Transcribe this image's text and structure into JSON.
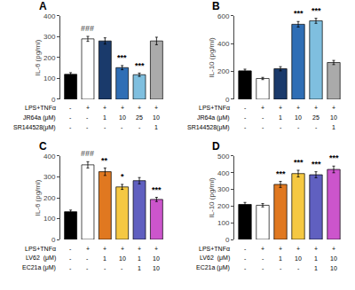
{
  "chart_data": [
    {
      "type": "bar",
      "title": "A",
      "ylabel": "IL-6 (pg/ml)",
      "categories": [
        null,
        null,
        null,
        null,
        null,
        null
      ],
      "values": [
        120,
        290,
        280,
        152,
        118,
        280
      ],
      "errors": [
        8,
        12,
        15,
        10,
        8,
        18
      ],
      "colors": [
        "#000000",
        "#ffffff",
        "#1a3a6b",
        "#2f6eb5",
        "#7fbfdf",
        "#aaaaaa"
      ],
      "ylim": [
        0,
        400
      ],
      "yticks": [
        0,
        100,
        200,
        300,
        400
      ],
      "grid": false,
      "tick_labels": "y",
      "annotations": [
        {
          "index": 1,
          "text": "###",
          "color": "#666666"
        },
        {
          "index": 3,
          "text": "***",
          "color": "#000000"
        },
        {
          "index": 4,
          "text": "***",
          "color": "#000000"
        }
      ],
      "x_table": {
        "row_labels": [
          "LPS+TNFα",
          "JR64a (μM)",
          "SR144528(μM)"
        ],
        "cells": [
          [
            "-",
            "+",
            "+",
            "+",
            "+",
            "+"
          ],
          [
            "-",
            "-",
            "1",
            "10",
            "25",
            "10"
          ],
          [
            "-",
            "-",
            "-",
            "-",
            "-",
            "1"
          ]
        ]
      }
    },
    {
      "type": "bar",
      "title": "B",
      "ylabel": "IL-10 (pg/ml)",
      "categories": [
        null,
        null,
        null,
        null,
        null,
        null
      ],
      "values": [
        205,
        150,
        220,
        540,
        565,
        265
      ],
      "errors": [
        12,
        8,
        15,
        20,
        18,
        15
      ],
      "colors": [
        "#000000",
        "#ffffff",
        "#1a3a6b",
        "#2f6eb5",
        "#7fbfdf",
        "#aaaaaa"
      ],
      "ylim": [
        0,
        600
      ],
      "yticks": [
        0,
        200,
        400,
        600
      ],
      "grid": false,
      "tick_labels": "y",
      "annotations": [
        {
          "index": 3,
          "text": "***",
          "color": "#000000"
        },
        {
          "index": 4,
          "text": "***",
          "color": "#000000"
        }
      ],
      "x_table": {
        "row_labels": [
          "LPS+TNFα",
          "JR64a (μM)",
          "SR144528(μM)"
        ],
        "cells": [
          [
            "-",
            "+",
            "+",
            "+",
            "+",
            "+"
          ],
          [
            "-",
            "-",
            "1",
            "10",
            "25",
            "10"
          ],
          [
            "-",
            "-",
            "-",
            "-",
            "-",
            "1"
          ]
        ]
      }
    },
    {
      "type": "bar",
      "title": "C",
      "ylabel": "IL-6 (pg/ml)",
      "categories": [
        null,
        null,
        null,
        null,
        null,
        null
      ],
      "values": [
        133,
        358,
        325,
        252,
        282,
        192
      ],
      "errors": [
        8,
        15,
        18,
        12,
        15,
        10
      ],
      "colors": [
        "#000000",
        "#ffffff",
        "#e07820",
        "#f5c842",
        "#6060c0",
        "#cc55cc"
      ],
      "ylim": [
        0,
        400
      ],
      "yticks": [
        0,
        100,
        200,
        300,
        400
      ],
      "grid": false,
      "tick_labels": "y",
      "annotations": [
        {
          "index": 1,
          "text": "###",
          "color": "#666666"
        },
        {
          "index": 2,
          "text": "**",
          "color": "#000000"
        },
        {
          "index": 3,
          "text": "*",
          "color": "#000000"
        },
        {
          "index": 5,
          "text": "***",
          "color": "#000000"
        }
      ],
      "x_table": {
        "row_labels": [
          "LPS+TNFα",
          "LV62  (μM)",
          "EC21a (μM)"
        ],
        "cells": [
          [
            "-",
            "+",
            "+",
            "+",
            "+",
            "+"
          ],
          [
            "-",
            "-",
            "1",
            "10",
            "1",
            "10"
          ],
          [
            "-",
            "-",
            "-",
            "-",
            "1",
            "10"
          ]
        ]
      }
    },
    {
      "type": "bar",
      "title": "D",
      "ylabel": "IL-10 (pg/ml)",
      "categories": [
        null,
        null,
        null,
        null,
        null,
        null
      ],
      "values": [
        210,
        205,
        330,
        395,
        388,
        420
      ],
      "errors": [
        12,
        10,
        18,
        20,
        18,
        20
      ],
      "colors": [
        "#000000",
        "#ffffff",
        "#e07820",
        "#f5c842",
        "#6060c0",
        "#cc55cc"
      ],
      "ylim": [
        0,
        500
      ],
      "yticks": [
        0,
        100,
        200,
        300,
        400,
        500
      ],
      "grid": false,
      "tick_labels": "y",
      "annotations": [
        {
          "index": 2,
          "text": "***",
          "color": "#000000"
        },
        {
          "index": 3,
          "text": "***",
          "color": "#000000"
        },
        {
          "index": 4,
          "text": "***",
          "color": "#000000"
        },
        {
          "index": 5,
          "text": "***",
          "color": "#000000"
        }
      ],
      "x_table": {
        "row_labels": [
          "LPS+TNFα",
          "LV62  (μM)",
          "EC21a (μM)"
        ],
        "cells": [
          [
            "-",
            "+",
            "+",
            "+",
            "+",
            "+"
          ],
          [
            "-",
            "-",
            "1",
            "10",
            "1",
            "10"
          ],
          [
            "-",
            "-",
            "-",
            "-",
            "1",
            "10"
          ]
        ]
      }
    }
  ]
}
